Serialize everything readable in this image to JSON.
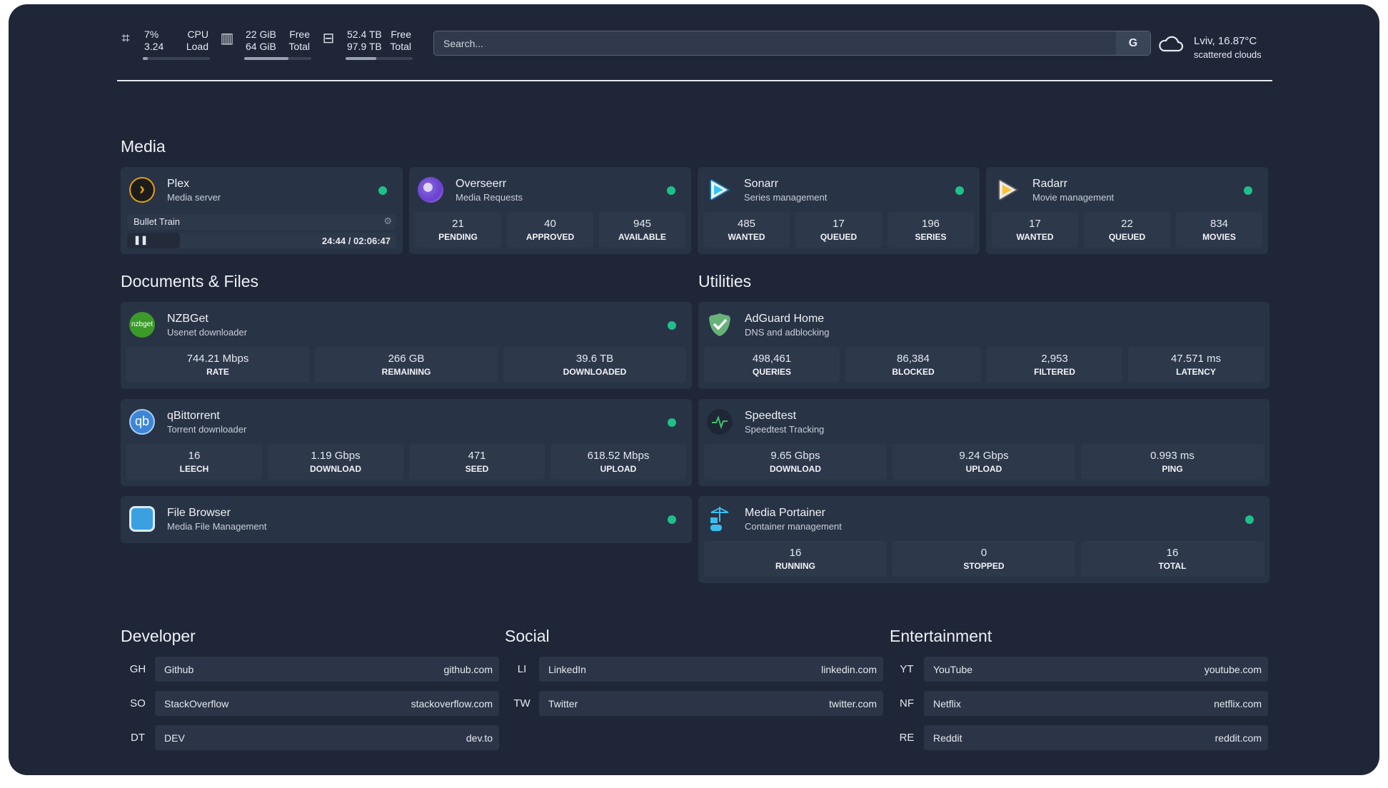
{
  "top": {
    "cpu": {
      "icon": "cpu-icon",
      "value1": "7%",
      "value2": "3.24",
      "label1": "CPU",
      "label2": "Load",
      "fill": 0.07
    },
    "ram": {
      "icon": "memory-icon",
      "value1": "22 GiB",
      "value2": "64 GiB",
      "label1": "Free",
      "label2": "Total",
      "fill": 0.66
    },
    "disk": {
      "icon": "hard-drive-icon",
      "value1": "52.4 TB",
      "value2": "97.9 TB",
      "label1": "Free",
      "label2": "Total",
      "fill": 0.46
    },
    "search": {
      "placeholder": "Search...",
      "engine_label": "G"
    },
    "weather": {
      "icon": "cloud-icon",
      "location_temp": "Lviv, 16.87°C",
      "condition": "scattered clouds"
    }
  },
  "sections": {
    "media": "Media",
    "docs": "Documents & Files",
    "utilities": "Utilities",
    "developer": "Developer",
    "social": "Social",
    "entertainment": "Entertainment"
  },
  "status_color": "#1fbf8a",
  "plex": {
    "title": "Plex",
    "sub": "Media server",
    "now_playing": "Bullet Train",
    "time": "24:44 / 02:06:47",
    "progress": 0.195
  },
  "overseerr": {
    "title": "Overseerr",
    "sub": "Media Requests",
    "stats": [
      {
        "v": "21",
        "l": "PENDING"
      },
      {
        "v": "40",
        "l": "APPROVED"
      },
      {
        "v": "945",
        "l": "AVAILABLE"
      }
    ]
  },
  "sonarr": {
    "title": "Sonarr",
    "sub": "Series management",
    "stats": [
      {
        "v": "485",
        "l": "WANTED"
      },
      {
        "v": "17",
        "l": "QUEUED"
      },
      {
        "v": "196",
        "l": "SERIES"
      }
    ]
  },
  "radarr": {
    "title": "Radarr",
    "sub": "Movie management",
    "stats": [
      {
        "v": "17",
        "l": "WANTED"
      },
      {
        "v": "22",
        "l": "QUEUED"
      },
      {
        "v": "834",
        "l": "MOVIES"
      }
    ]
  },
  "nzbget": {
    "title": "NZBGet",
    "sub": "Usenet downloader",
    "icon_text": "nzbget",
    "stats": [
      {
        "v": "744.21 Mbps",
        "l": "RATE"
      },
      {
        "v": "266 GB",
        "l": "REMAINING"
      },
      {
        "v": "39.6 TB",
        "l": "DOWNLOADED"
      }
    ]
  },
  "adguard": {
    "title": "AdGuard Home",
    "sub": "DNS and adblocking",
    "stats": [
      {
        "v": "498,461",
        "l": "QUERIES"
      },
      {
        "v": "86,384",
        "l": "BLOCKED"
      },
      {
        "v": "2,953",
        "l": "FILTERED"
      },
      {
        "v": "47.571 ms",
        "l": "LATENCY"
      }
    ]
  },
  "qbit": {
    "title": "qBittorrent",
    "sub": "Torrent downloader",
    "icon_text": "qb",
    "stats": [
      {
        "v": "16",
        "l": "LEECH"
      },
      {
        "v": "1.19 Gbps",
        "l": "DOWNLOAD"
      },
      {
        "v": "471",
        "l": "SEED"
      },
      {
        "v": "618.52 Mbps",
        "l": "UPLOAD"
      }
    ]
  },
  "speedtest": {
    "title": "Speedtest",
    "sub": "Speedtest Tracking",
    "stats": [
      {
        "v": "9.65 Gbps",
        "l": "DOWNLOAD"
      },
      {
        "v": "9.24 Gbps",
        "l": "UPLOAD"
      },
      {
        "v": "0.993 ms",
        "l": "PING"
      }
    ]
  },
  "filebrowser": {
    "title": "File Browser",
    "sub": "Media File Management"
  },
  "portainer": {
    "title": "Media Portainer",
    "sub": "Container management",
    "stats": [
      {
        "v": "16",
        "l": "RUNNING"
      },
      {
        "v": "0",
        "l": "STOPPED"
      },
      {
        "v": "16",
        "l": "TOTAL"
      }
    ]
  },
  "bookmarks": {
    "developer": [
      {
        "abbr": "GH",
        "name": "Github",
        "url": "github.com"
      },
      {
        "abbr": "SO",
        "name": "StackOverflow",
        "url": "stackoverflow.com"
      },
      {
        "abbr": "DT",
        "name": "DEV",
        "url": "dev.to"
      }
    ],
    "social": [
      {
        "abbr": "LI",
        "name": "LinkedIn",
        "url": "linkedin.com"
      },
      {
        "abbr": "TW",
        "name": "Twitter",
        "url": "twitter.com"
      }
    ],
    "entertainment": [
      {
        "abbr": "YT",
        "name": "YouTube",
        "url": "youtube.com"
      },
      {
        "abbr": "NF",
        "name": "Netflix",
        "url": "netflix.com"
      },
      {
        "abbr": "RE",
        "name": "Reddit",
        "url": "reddit.com"
      }
    ]
  }
}
